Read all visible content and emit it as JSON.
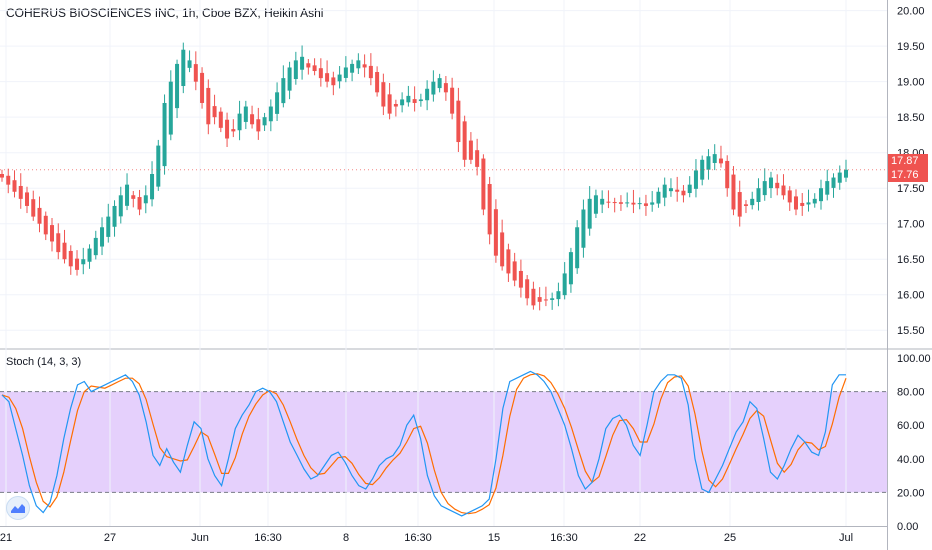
{
  "chart_data": [
    {
      "type": "candlestick",
      "title": "COHERUS BIOSCIENCES INC, 1h, Cboe BZX, Heikin Ashi",
      "y_ticks": [
        "20.00",
        "19.50",
        "19.00",
        "18.50",
        "18.00",
        "17.50",
        "17.00",
        "16.50",
        "16.00",
        "15.50"
      ],
      "ylim": [
        15.25,
        20.15
      ],
      "x_ticks": [
        "21",
        "27",
        "Jun",
        "16:30",
        "8",
        "16:30",
        "15",
        "16:30",
        "22",
        "25",
        "Jul"
      ],
      "last_prices": [
        {
          "label": "17.87",
          "color": "#ef5350"
        },
        {
          "label": "17.76",
          "color": "#ef5350"
        }
      ],
      "colors": {
        "up": "#26a69a",
        "down": "#ef5350"
      },
      "candles_close": [
        17.65,
        17.55,
        17.45,
        17.35,
        17.25,
        17.1,
        17.0,
        16.85,
        16.75,
        16.6,
        16.5,
        16.4,
        16.35,
        16.5,
        16.65,
        16.8,
        16.95,
        17.1,
        17.25,
        17.4,
        17.55,
        17.35,
        17.2,
        17.4,
        17.7,
        18.1,
        18.7,
        19.0,
        19.25,
        19.45,
        19.3,
        19.0,
        18.7,
        18.4,
        18.5,
        18.35,
        18.2,
        18.3,
        18.55,
        18.65,
        18.4,
        18.3,
        18.5,
        18.65,
        18.85,
        19.05,
        19.2,
        19.3,
        19.35,
        19.2,
        19.15,
        19.05,
        19.0,
        18.95,
        19.1,
        19.2,
        19.25,
        19.3,
        19.2,
        19.05,
        18.85,
        18.65,
        18.55,
        18.65,
        18.75,
        18.8,
        18.7,
        18.75,
        18.9,
        19.0,
        19.05,
        18.85,
        18.55,
        18.15,
        17.9,
        17.9,
        17.8,
        17.2,
        16.85,
        16.55,
        16.4,
        16.3,
        16.2,
        16.1,
        15.95,
        15.85,
        15.9,
        15.92,
        15.95,
        16.05,
        16.3,
        16.6,
        16.95,
        17.2,
        17.35,
        17.4,
        17.35,
        17.3,
        17.3,
        17.28,
        17.3,
        17.27,
        17.29,
        17.25,
        17.3,
        17.45,
        17.55,
        17.5,
        17.45,
        17.4,
        17.55,
        17.75,
        17.9,
        17.95,
        17.98,
        17.85,
        17.5,
        17.2,
        17.1,
        17.25,
        17.35,
        17.5,
        17.6,
        17.65,
        17.5,
        17.4,
        17.3,
        17.2,
        17.25,
        17.3,
        17.35,
        17.5,
        17.6,
        17.65,
        17.72,
        17.76
      ],
      "stoch_k_approx": [
        78,
        74,
        58,
        42,
        24,
        12,
        8,
        14,
        30,
        52,
        70,
        84,
        86,
        80,
        82,
        84,
        86,
        88,
        90,
        86,
        78,
        62,
        42,
        36,
        46,
        38,
        32,
        48,
        62,
        58,
        40,
        30,
        24,
        40,
        58,
        66,
        72,
        80,
        82,
        80,
        74,
        62,
        50,
        42,
        34,
        28,
        30,
        36,
        42,
        44,
        38,
        30,
        24,
        22,
        28,
        36,
        40,
        42,
        48,
        60,
        66,
        52,
        30,
        18,
        12,
        10,
        8,
        6,
        8,
        10,
        12,
        16,
        40,
        70,
        86,
        88,
        90,
        92,
        90,
        86,
        80,
        70,
        60,
        46,
        30,
        22,
        26,
        40,
        58,
        64,
        66,
        60,
        48,
        42,
        60,
        80,
        86,
        90,
        90,
        88,
        72,
        40,
        22,
        20,
        28,
        36,
        46,
        56,
        62,
        74,
        70,
        52,
        32,
        28,
        36,
        46,
        54,
        50,
        44,
        42,
        56,
        84,
        90,
        90
      ]
    },
    {
      "type": "line",
      "title": "Stoch (14, 3, 3)",
      "y_ticks": [
        "100.00",
        "80.00",
        "60.00",
        "40.00",
        "20.00",
        "0.00"
      ],
      "ylim": [
        0,
        100
      ],
      "band": [
        20,
        80
      ],
      "series": [
        {
          "name": "%K",
          "color": "#2196f3"
        },
        {
          "name": "%D",
          "color": "#ff6d00"
        }
      ]
    }
  ]
}
